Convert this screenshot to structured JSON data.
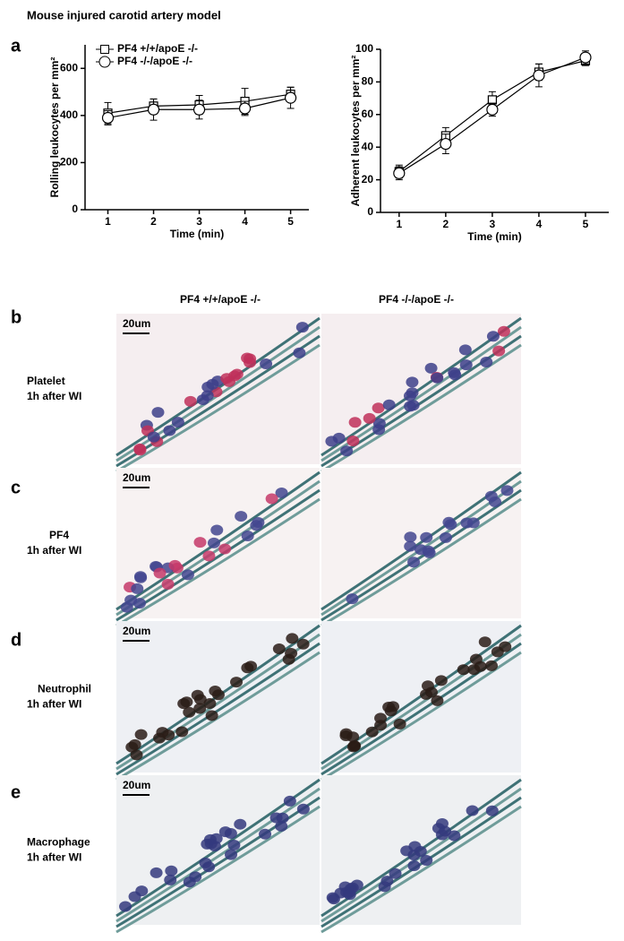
{
  "figure": {
    "title": "Mouse injured carotid artery model",
    "panel_labels": [
      "a",
      "b",
      "c",
      "d",
      "e"
    ],
    "columns": [
      "PF4 +/+/apoE -/-",
      "PF4 -/-/apoE -/-"
    ],
    "rows": [
      {
        "stain": "Platelet",
        "time": "1h after WI"
      },
      {
        "stain": "PF4",
        "time": "1h after WI"
      },
      {
        "stain": "Neutrophil",
        "time": "1h after WI"
      },
      {
        "stain": "Macrophage",
        "time": "1h after WI"
      }
    ],
    "scale_bar": "20um"
  },
  "chart_data": [
    {
      "type": "line",
      "y_label": "Rolling leukocytes per mm²",
      "x_label": "Time (min)",
      "x": [
        1,
        2,
        3,
        4,
        5
      ],
      "xlim": [
        0.5,
        5.4
      ],
      "xticks": [
        1,
        2,
        3,
        4,
        5
      ],
      "ylim": [
        0,
        700
      ],
      "yticks": [
        0,
        200,
        400,
        600
      ],
      "legend": "top-left",
      "series": [
        {
          "name": "PF4 +/+/apoE -/-",
          "marker": "square",
          "color": "#000000",
          "values": [
            410,
            440,
            445,
            460,
            490
          ],
          "errors": [
            45,
            30,
            40,
            55,
            30
          ]
        },
        {
          "name": "PF4 -/-/apoE -/-",
          "marker": "circle",
          "color": "#000000",
          "values": [
            390,
            425,
            425,
            430,
            475
          ],
          "errors": [
            30,
            45,
            40,
            30,
            45
          ]
        }
      ]
    },
    {
      "type": "line",
      "y_label": "Adherent leukocytes per mm²",
      "x_label": "Time (min)",
      "x": [
        1,
        2,
        3,
        4,
        5
      ],
      "xlim": [
        0.6,
        5.5
      ],
      "xticks": [
        1,
        2,
        3,
        4,
        5
      ],
      "ylim": [
        0,
        100
      ],
      "yticks": [
        0,
        20,
        40,
        60,
        80,
        100
      ],
      "series": [
        {
          "marker": "square",
          "color": "#000000",
          "values": [
            25,
            47,
            69,
            86,
            93
          ],
          "errors": [
            4,
            5,
            5,
            5,
            3
          ]
        },
        {
          "marker": "circle",
          "color": "#000000",
          "values": [
            24,
            42,
            63,
            84,
            95
          ],
          "errors": [
            4,
            6,
            4,
            7,
            4
          ]
        }
      ]
    }
  ]
}
